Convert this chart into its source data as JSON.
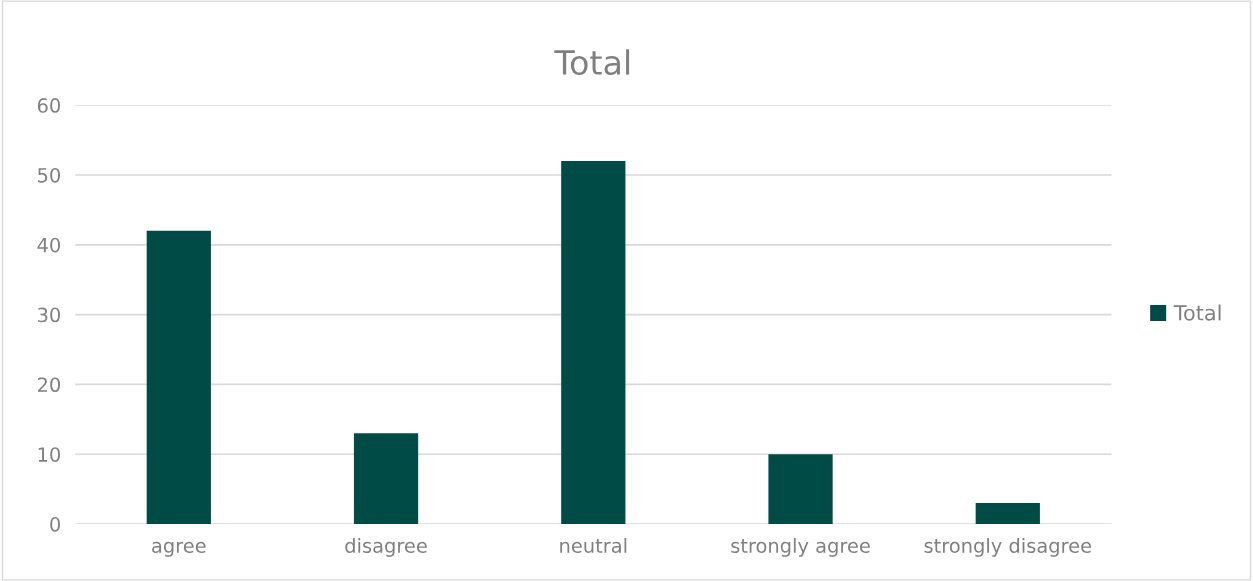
{
  "chart_data": {
    "type": "bar",
    "title": "Total",
    "categories": [
      "agree",
      "disagree",
      "neutral",
      "strongly agree",
      "strongly disagree"
    ],
    "series": [
      {
        "name": "Total",
        "color": "#004b45",
        "values": [
          42,
          13,
          52,
          10,
          3
        ]
      }
    ],
    "ylim": [
      0,
      60
    ],
    "yticks": [
      0,
      10,
      20,
      30,
      40,
      50,
      60
    ],
    "grid": "y",
    "legend": "right"
  }
}
